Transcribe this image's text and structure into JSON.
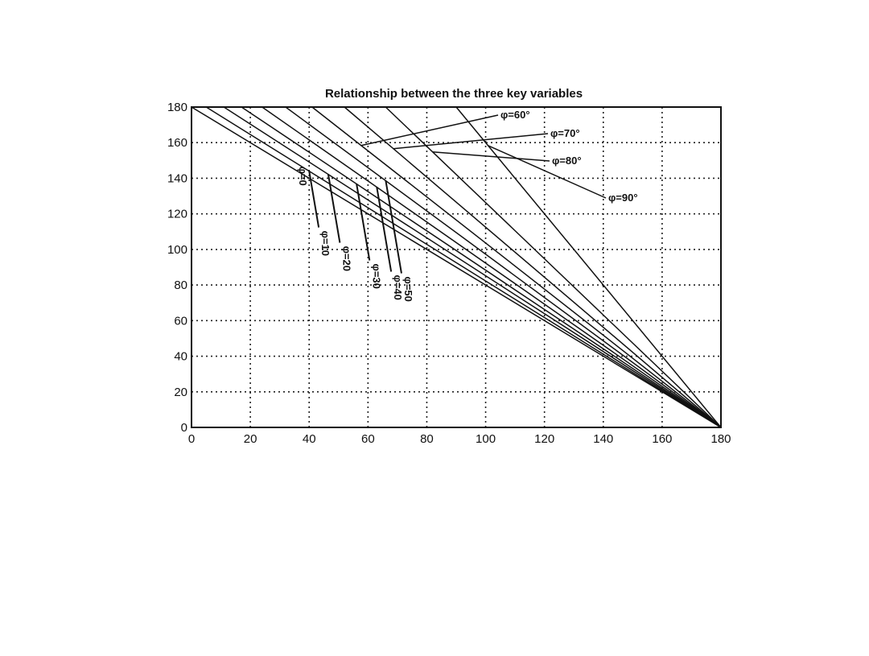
{
  "chart_data": {
    "type": "line",
    "title": "Relationship between the three key variables",
    "xlabel": "",
    "ylabel": "",
    "xlim": [
      0,
      180
    ],
    "ylim": [
      0,
      180
    ],
    "x_ticks": [
      0,
      20,
      40,
      60,
      80,
      100,
      120,
      140,
      160,
      180
    ],
    "y_ticks": [
      0,
      20,
      40,
      60,
      80,
      100,
      120,
      140,
      160,
      180
    ],
    "y_tick_labels": [
      "0",
      "20",
      "40",
      "60",
      "80",
      "100",
      "120",
      "140",
      "160",
      "180"
    ],
    "x_tick_labels": [
      "0",
      "20",
      "40",
      "60",
      "80",
      "100",
      "120",
      "140",
      "160",
      "180"
    ],
    "grid": true,
    "grid_style": "dotted",
    "series": [
      {
        "name": "φ=0",
        "x": [
          0,
          180
        ],
        "y": [
          180,
          0
        ]
      },
      {
        "name": "φ=10",
        "x": [
          5,
          180
        ],
        "y": [
          180,
          0
        ]
      },
      {
        "name": "φ=20",
        "x": [
          11,
          180
        ],
        "y": [
          180,
          0
        ]
      },
      {
        "name": "φ=30",
        "x": [
          17,
          180
        ],
        "y": [
          180,
          0
        ]
      },
      {
        "name": "φ=40",
        "x": [
          24,
          180
        ],
        "y": [
          180,
          0
        ]
      },
      {
        "name": "φ=50",
        "x": [
          32,
          180
        ],
        "y": [
          180,
          0
        ]
      },
      {
        "name": "φ=60",
        "x": [
          41,
          180
        ],
        "y": [
          180,
          0
        ]
      },
      {
        "name": "φ=70",
        "x": [
          52,
          180
        ],
        "y": [
          180,
          0
        ]
      },
      {
        "name": "φ=80",
        "x": [
          66,
          180
        ],
        "y": [
          180,
          0
        ]
      },
      {
        "name": "φ=90",
        "x": [
          90,
          180
        ],
        "y": [
          180,
          0
        ]
      }
    ],
    "annotations": [
      {
        "text": "φ=0",
        "rotated": true,
        "series": 0
      },
      {
        "text": "φ=10",
        "rotated": true,
        "series": 1
      },
      {
        "text": "φ=20",
        "rotated": true,
        "series": 2
      },
      {
        "text": "φ=30",
        "rotated": true,
        "series": 3
      },
      {
        "text": "φ=40",
        "rotated": true,
        "series": 4
      },
      {
        "text": "φ=50",
        "rotated": true,
        "series": 5
      },
      {
        "text": "φ=60°",
        "rotated": false,
        "series": 6
      },
      {
        "text": "φ=70°",
        "rotated": false,
        "series": 7
      },
      {
        "text": "φ=80°",
        "rotated": false,
        "series": 8
      },
      {
        "text": "φ=90°",
        "rotated": false,
        "series": 9
      }
    ],
    "colors": {
      "line": "#111111",
      "grid": "#222222",
      "background": "#ffffff"
    }
  }
}
